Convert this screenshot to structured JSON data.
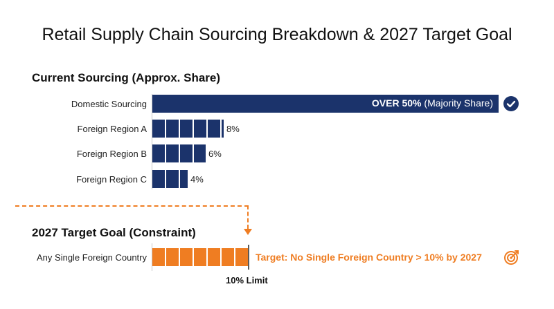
{
  "title": "Retail Supply Chain Sourcing Breakdown & 2027 Target Goal",
  "sections": {
    "current": "Current Sourcing (Approx. Share)",
    "goal": "2027 Target Goal (Constraint)"
  },
  "chart_data": {
    "type": "bar",
    "orientation": "horizontal",
    "categories": [
      "Domestic Sourcing",
      "Foreign Region A",
      "Foreign Region B",
      "Foreign Region C"
    ],
    "values": [
      50,
      8,
      6,
      4
    ],
    "value_labels": [
      "OVER 50%",
      "8%",
      "6%",
      "4%"
    ],
    "domestic_strong": "OVER 50%",
    "domestic_note": "(Majority Share)",
    "unit": "%",
    "target": {
      "category": "Any Single Foreign Country",
      "limit_value": 10,
      "limit_label": "10% Limit",
      "note": "Target: No Single Foreign Country > 10% by 2027"
    },
    "colors": {
      "current": "#1b336b",
      "target": "#ef7d22"
    }
  },
  "icons": {
    "domestic": "check-circle-icon",
    "target": "target-icon"
  }
}
